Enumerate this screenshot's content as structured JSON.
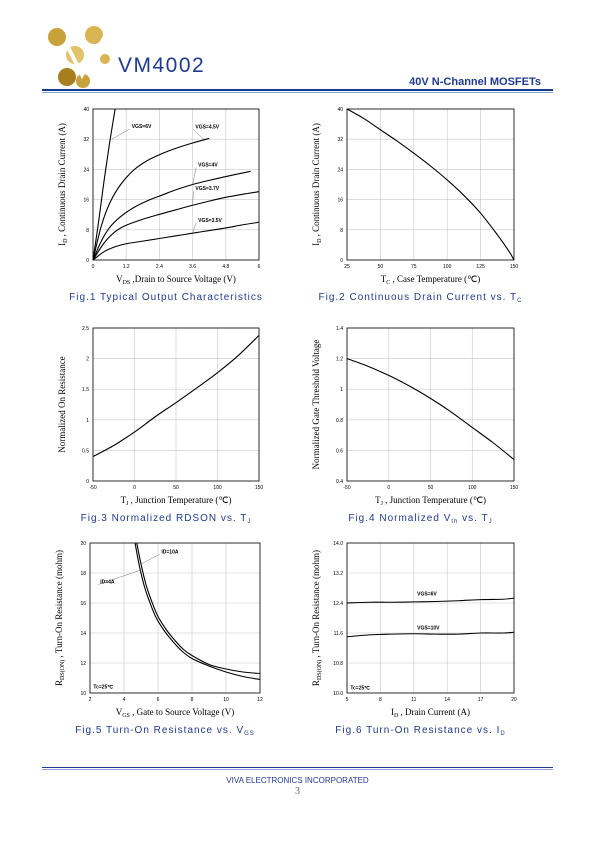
{
  "header": {
    "brand": "VM4002",
    "subtitle": "40V N-Channel MOSFETs",
    "logo_colors": [
      "#c9a13b",
      "#e2c26a",
      "#a77d1e"
    ]
  },
  "footer": {
    "company": "VIVA ELECTRONICS INCORPORATED",
    "page": "3"
  },
  "colors": {
    "accent": "#1f3a93",
    "curve": "#000000"
  },
  "chart_data": [
    {
      "id": "fig1",
      "type": "line",
      "caption": "Fig.1   Typical Output Characteristics",
      "ylabel": "ID , Continuous Drain Current (A)",
      "xlabel": "VDS ,Drain to Source Voltage (V)",
      "xlim": [
        0,
        6
      ],
      "ylim": [
        0,
        40
      ],
      "xticks": [
        0,
        1.2,
        2.4,
        3.6,
        4.8,
        6
      ],
      "xtick_labels": [
        "0",
        "1.2",
        "2.4",
        "3.6",
        "4.8",
        "6"
      ],
      "yticks": [
        0,
        8,
        16,
        24,
        32,
        40
      ],
      "ytick_labels": [
        "0",
        "8",
        "16",
        "24",
        "32",
        "40"
      ],
      "grid": true,
      "series": [
        {
          "name": "VGS=6V",
          "x": [
            0,
            0.2,
            0.4,
            0.6,
            0.8
          ],
          "y": [
            0,
            10,
            21,
            31,
            40
          ]
        },
        {
          "name": "VGS=4.5V",
          "x": [
            0,
            0.3,
            0.6,
            1.0,
            1.5,
            2.0,
            2.5,
            3.0,
            3.6,
            4.2
          ],
          "y": [
            0,
            9,
            15,
            20,
            24,
            26.5,
            28.2,
            29.6,
            31.0,
            32.2
          ]
        },
        {
          "name": "VGS=4V",
          "x": [
            0,
            0.3,
            0.6,
            1.0,
            1.5,
            2.0,
            2.5,
            3.0,
            3.6,
            4.2,
            4.8,
            5.7
          ],
          "y": [
            0,
            5,
            8.6,
            11.5,
            14,
            15.8,
            17.2,
            18.6,
            20.0,
            21.1,
            22.1,
            23.5
          ]
        },
        {
          "name": "VGS=3.7V",
          "x": [
            0,
            0.4,
            0.8,
            1.2,
            1.8,
            2.4,
            3.0,
            3.6,
            4.2,
            4.8,
            5.4,
            6.0
          ],
          "y": [
            0,
            4.5,
            7.5,
            9.2,
            10.8,
            12.1,
            13.3,
            14.5,
            15.6,
            16.6,
            17.4,
            18.1
          ]
        },
        {
          "name": "VGS=3.5V",
          "x": [
            0,
            0.4,
            0.8,
            1.2,
            1.8,
            2.4,
            3.0,
            3.6,
            4.2,
            4.8,
            5.4,
            6.0
          ],
          "y": [
            0,
            2.2,
            3.5,
            4.3,
            5.0,
            5.7,
            6.4,
            7.1,
            7.8,
            8.5,
            9.3,
            10.0
          ]
        }
      ],
      "annotations": [
        {
          "text": "VGS=6V",
          "at": [
            1.4,
            35
          ],
          "leader_to": [
            0.68,
            32
          ]
        },
        {
          "text": "VGS=4.5V",
          "at": [
            3.7,
            34.8
          ],
          "leader_to": [
            4.0,
            32
          ]
        },
        {
          "text": "VGS=4V",
          "at": [
            3.8,
            24.8
          ],
          "leader_to": [
            3.6,
            20
          ]
        },
        {
          "text": "VGS=3.7V",
          "at": [
            3.7,
            18.6
          ],
          "leader_to": [
            3.6,
            14.5
          ]
        },
        {
          "text": "VGS=3.5V",
          "at": [
            3.8,
            10.1
          ],
          "leader_to": [
            3.6,
            7.1
          ]
        }
      ]
    },
    {
      "id": "fig2",
      "type": "line",
      "caption": "Fig.2   Continuous Drain Current vs. TC",
      "ylabel": "ID , Continuous Drain Current (A)",
      "xlabel": "TC , Case Temperature (℃)",
      "xlim": [
        25,
        150
      ],
      "ylim": [
        0,
        40
      ],
      "xticks": [
        25,
        50,
        75,
        100,
        125,
        150
      ],
      "xtick_labels": [
        "25",
        "50",
        "75",
        "100",
        "125",
        "150"
      ],
      "yticks": [
        0,
        8,
        16,
        24,
        32,
        40
      ],
      "ytick_labels": [
        "0",
        "8",
        "16",
        "24",
        "32",
        "40"
      ],
      "grid": true,
      "series": [
        {
          "x": [
            25,
            37.5,
            50,
            62.5,
            75,
            87.5,
            100,
            112.5,
            125,
            137.5,
            143.75,
            147.5,
            150
          ],
          "y": [
            40,
            37.5,
            34.5,
            31.5,
            28.3,
            24.9,
            21.2,
            17.1,
            12.4,
            6.7,
            3.6,
            1.6,
            0
          ]
        }
      ]
    },
    {
      "id": "fig3",
      "type": "line",
      "caption": "Fig.3   Normalized RDSON vs. TJ",
      "ylabel": "Normalized On Resistance",
      "xlabel": "TJ , Junction Temperature (℃)",
      "xlim": [
        -50,
        150
      ],
      "ylim": [
        0,
        2.5
      ],
      "xticks": [
        -50,
        0,
        50,
        100,
        150
      ],
      "xtick_labels": [
        "-50",
        "0",
        "50",
        "100",
        "150"
      ],
      "yticks": [
        0,
        0.5,
        1,
        1.5,
        2,
        2.5
      ],
      "ytick_labels": [
        "0",
        "0.5",
        "1",
        "1.5",
        "2",
        "2.5"
      ],
      "grid": true,
      "series": [
        {
          "x": [
            -50,
            -25,
            0,
            25,
            50,
            75,
            100,
            125,
            150
          ],
          "y": [
            0.4,
            0.58,
            0.8,
            1.05,
            1.28,
            1.52,
            1.77,
            2.05,
            2.38
          ]
        }
      ]
    },
    {
      "id": "fig4",
      "type": "line",
      "caption": "Fig.4   Normalized Vth vs. TJ",
      "ylabel": "Normalized Gate Threshold Voltage",
      "xlabel": "TJ , Junction Temperature (℃)",
      "xlim": [
        -50,
        150
      ],
      "ylim": [
        0.4,
        1.4
      ],
      "xticks": [
        -50,
        0,
        50,
        100,
        150
      ],
      "xtick_labels": [
        "-50",
        "0",
        "50",
        "100",
        "150"
      ],
      "yticks": [
        0.4,
        0.6,
        0.8,
        1,
        1.2,
        1.4
      ],
      "ytick_labels": [
        "0.4",
        "0.6",
        "0.8",
        "1",
        "1.2",
        "1.4"
      ],
      "grid": true,
      "series": [
        {
          "x": [
            -50,
            -25,
            0,
            25,
            50,
            75,
            100,
            125,
            150
          ],
          "y": [
            1.2,
            1.15,
            1.09,
            1.02,
            0.94,
            0.85,
            0.75,
            0.65,
            0.54
          ]
        }
      ]
    },
    {
      "id": "fig5",
      "type": "line",
      "caption": "Fig.5   Turn-On Resistance vs. VGS",
      "ylabel": "RDS(ON) , Turn-On Resistance (mohm)",
      "xlabel": "VGS , Gate to Source Voltage (V)",
      "xlim": [
        2,
        12
      ],
      "ylim": [
        10,
        20
      ],
      "xticks": [
        2,
        4,
        6,
        8,
        10,
        12
      ],
      "xtick_labels": [
        "2",
        "4",
        "6",
        "8",
        "10",
        "12"
      ],
      "yticks": [
        10,
        12,
        14,
        16,
        18,
        20
      ],
      "ytick_labels": [
        "10",
        "12",
        "14",
        "16",
        "18",
        "20"
      ],
      "grid": true,
      "series": [
        {
          "name": "ID=10A",
          "x": [
            4.75,
            5.0,
            5.3,
            5.6,
            6.0,
            6.5,
            7.0,
            7.5,
            8.0,
            9.0,
            10.0,
            11.0,
            12.0
          ],
          "y": [
            20,
            18.6,
            17.2,
            16.2,
            15.1,
            14.2,
            13.5,
            12.9,
            12.5,
            11.9,
            11.6,
            11.4,
            11.3
          ]
        },
        {
          "name": "ID=4A",
          "x": [
            4.65,
            4.9,
            5.2,
            5.5,
            5.9,
            6.4,
            6.9,
            7.4,
            8.0,
            9.0,
            10.0,
            11.0,
            12.0
          ],
          "y": [
            20,
            18.5,
            17.1,
            16.1,
            15.0,
            14.1,
            13.4,
            12.8,
            12.3,
            11.8,
            11.4,
            11.1,
            10.9
          ]
        }
      ],
      "annotations": [
        {
          "text": "ID=10A",
          "at": [
            6.2,
            19.3
          ],
          "leader_to": [
            5.0,
            18.6
          ]
        },
        {
          "text": "ID=4A",
          "at": [
            2.6,
            17.3
          ],
          "leader_to": [
            5.0,
            18.2
          ]
        },
        {
          "text": "Tc=25℃",
          "at": [
            2.2,
            10.3
          ]
        }
      ]
    },
    {
      "id": "fig6",
      "type": "line",
      "caption": "Fig.6   Turn-On Resistance vs. ID",
      "ylabel": "RDS(ON) , Turn-On Resistance (mohm)",
      "xlabel": "ID , Drain Current (A)",
      "xlim": [
        5,
        20
      ],
      "ylim": [
        10,
        14
      ],
      "xticks": [
        5,
        8,
        11,
        14,
        17,
        20
      ],
      "xtick_labels": [
        "5",
        "8",
        "11",
        "14",
        "17",
        "20"
      ],
      "yticks": [
        10,
        10.8,
        11.6,
        12.4,
        13.2,
        14
      ],
      "ytick_labels": [
        "10.0",
        "10.8",
        "11.6",
        "12.4",
        "13.2",
        "14.0"
      ],
      "grid": true,
      "series": [
        {
          "name": "VGS=6V",
          "x": [
            5,
            7,
            9,
            11,
            13,
            15,
            17,
            19,
            20
          ],
          "y": [
            12.4,
            12.42,
            12.42,
            12.43,
            12.44,
            12.46,
            12.49,
            12.5,
            12.53
          ]
        },
        {
          "name": "VGS=10V",
          "x": [
            5,
            7,
            9,
            11,
            13,
            15,
            17,
            19,
            20
          ],
          "y": [
            11.5,
            11.55,
            11.57,
            11.58,
            11.57,
            11.57,
            11.6,
            11.6,
            11.62
          ]
        }
      ],
      "annotations": [
        {
          "text": "VGS=6V",
          "at": [
            11.3,
            12.6
          ]
        },
        {
          "text": "VGS=10V",
          "at": [
            11.3,
            11.7
          ]
        },
        {
          "text": "Tc=25℃",
          "at": [
            5.3,
            10.1
          ]
        }
      ]
    }
  ]
}
